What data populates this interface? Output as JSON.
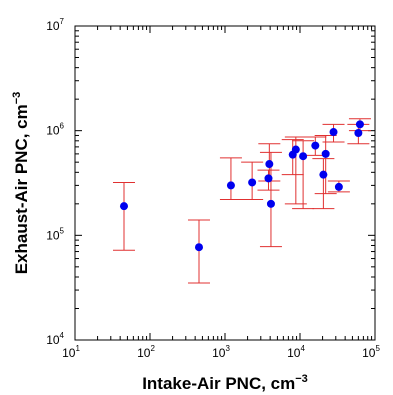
{
  "chart_data": {
    "type": "scatter",
    "title": "",
    "xlabel": "Intake-Air PNC, cm",
    "xlabel_exp": "−3",
    "ylabel": "Exhaust-Air PNC, cm",
    "ylabel_exp": "−3",
    "xscale": "log",
    "yscale": "log",
    "xlim": [
      10,
      100000
    ],
    "ylim": [
      10000,
      10000000
    ],
    "x_ticks": [
      {
        "base": "10",
        "exp": "1"
      },
      {
        "base": "10",
        "exp": "2"
      },
      {
        "base": "10",
        "exp": "3"
      },
      {
        "base": "10",
        "exp": "4"
      },
      {
        "base": "10",
        "exp": "5"
      }
    ],
    "y_ticks": [
      {
        "base": "10",
        "exp": "4"
      },
      {
        "base": "10",
        "exp": "5"
      },
      {
        "base": "10",
        "exp": "6"
      },
      {
        "base": "10",
        "exp": "7"
      }
    ],
    "grid": false,
    "legend": "none",
    "marker_color": "#0000ee",
    "errorbar_color": "#e03030",
    "points": [
      {
        "x": 45,
        "y": 190000,
        "ylow": 72000,
        "yhigh": 320000
      },
      {
        "x": 450,
        "y": 77000,
        "ylow": 35000,
        "yhigh": 140000
      },
      {
        "x": 1200,
        "y": 300000,
        "ylow": 220000,
        "yhigh": 550000
      },
      {
        "x": 2300,
        "y": 320000,
        "ylow": 220000,
        "yhigh": 500000
      },
      {
        "x": 3800,
        "y": 350000,
        "ylow": 270000,
        "yhigh": 420000
      },
      {
        "x": 3900,
        "y": 480000,
        "ylow": 330000,
        "yhigh": 750000
      },
      {
        "x": 4100,
        "y": 200000,
        "ylow": 78000,
        "yhigh": 620000
      },
      {
        "x": 8000,
        "y": 590000,
        "ylow": 380000,
        "yhigh": 820000
      },
      {
        "x": 8800,
        "y": 660000,
        "ylow": 200000,
        "yhigh": 870000
      },
      {
        "x": 11000,
        "y": 570000,
        "ylow": 180000,
        "yhigh": 800000
      },
      {
        "x": 16000,
        "y": 720000,
        "ylow": 580000,
        "yhigh": 870000
      },
      {
        "x": 20500,
        "y": 380000,
        "ylow": 180000,
        "yhigh": 540000
      },
      {
        "x": 22000,
        "y": 600000,
        "ylow": 250000,
        "yhigh": 900000
      },
      {
        "x": 28000,
        "y": 970000,
        "ylow": 780000,
        "yhigh": 1150000
      },
      {
        "x": 33000,
        "y": 290000,
        "ylow": 260000,
        "yhigh": 330000
      },
      {
        "x": 60000,
        "y": 950000,
        "ylow": 750000,
        "yhigh": 1150000
      },
      {
        "x": 63000,
        "y": 1150000,
        "ylow": 1000000,
        "yhigh": 1300000
      }
    ]
  }
}
